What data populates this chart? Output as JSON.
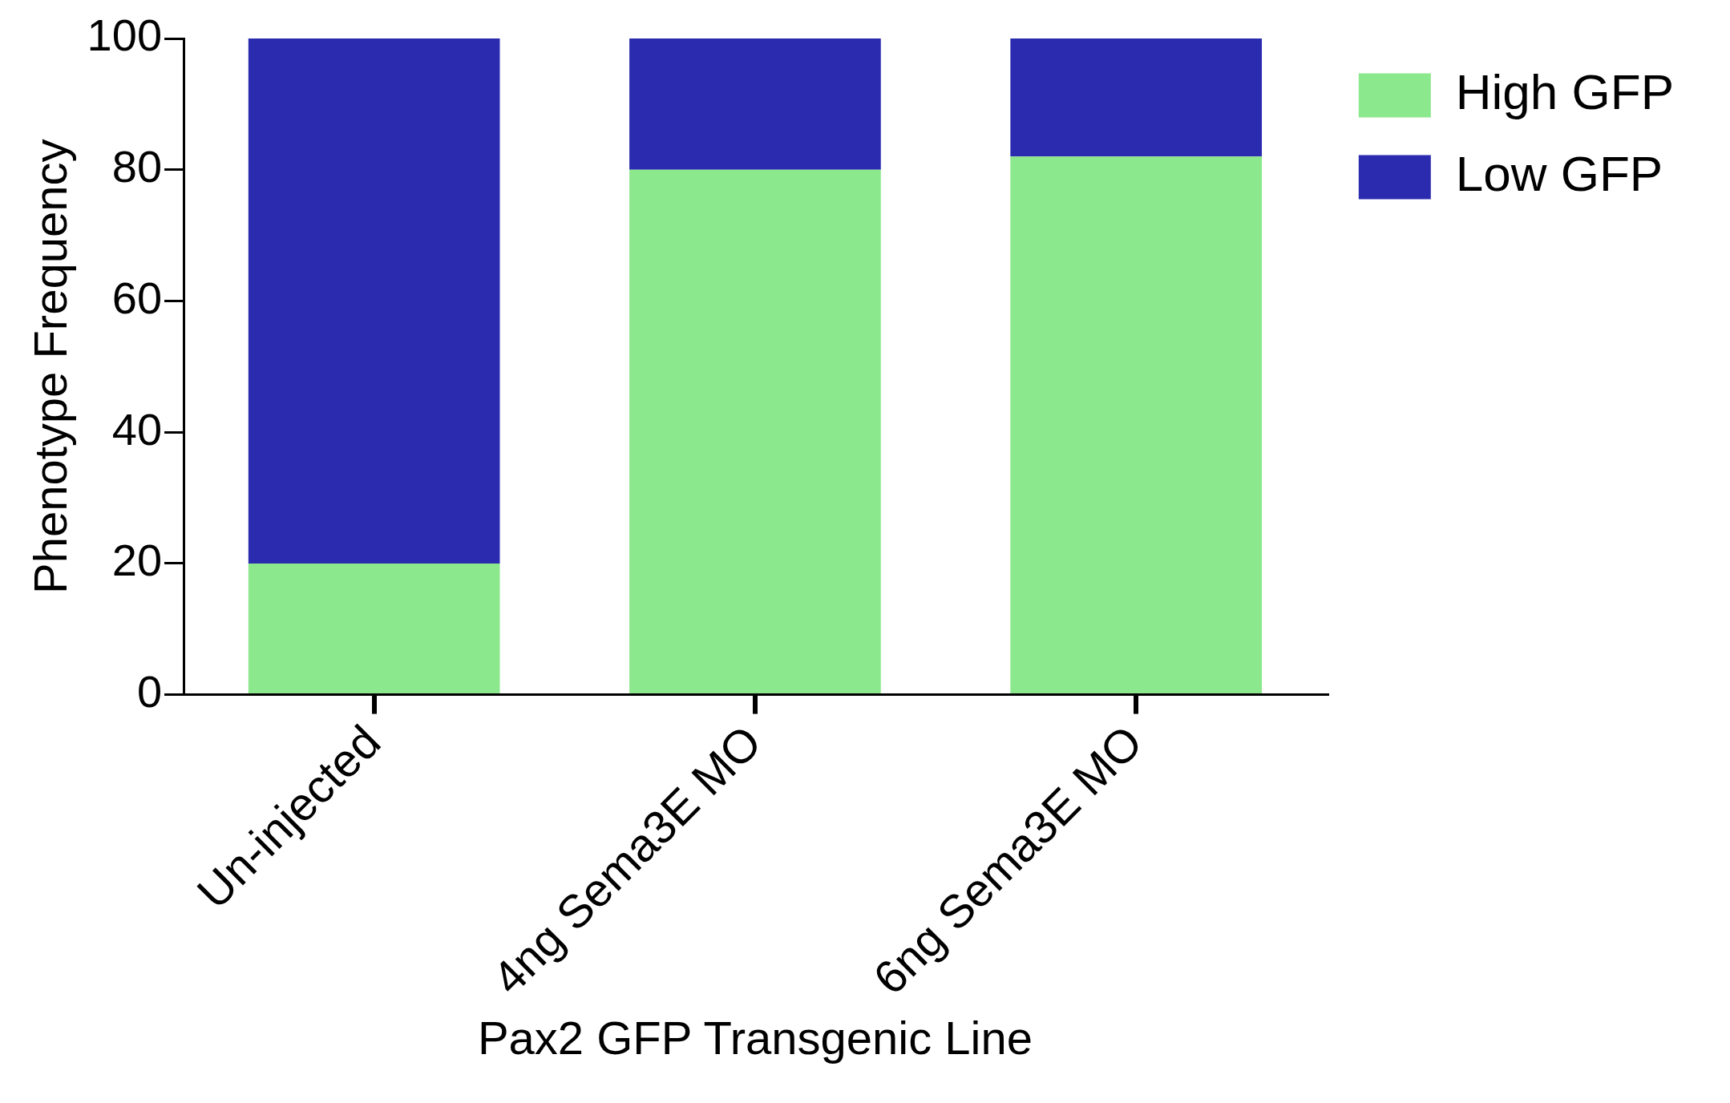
{
  "chart_data": {
    "type": "bar",
    "stacked": true,
    "xlabel": "Pax2 GFP Transgenic Line",
    "ylabel": "Phenotype Frequency",
    "categories": [
      "Un-injected",
      "4ng Sema3E MO",
      "6ng Sema3E MO"
    ],
    "series": [
      {
        "name": "High GFP",
        "color": "#8ce88c",
        "values": [
          20,
          80,
          82
        ]
      },
      {
        "name": "Low GFP",
        "color": "#2b2bb0",
        "values": [
          80,
          20,
          18
        ]
      }
    ],
    "ylim": [
      0,
      100
    ],
    "yticks": [
      0,
      20,
      40,
      60,
      80,
      100
    ],
    "grid": false,
    "legend": "top right"
  }
}
